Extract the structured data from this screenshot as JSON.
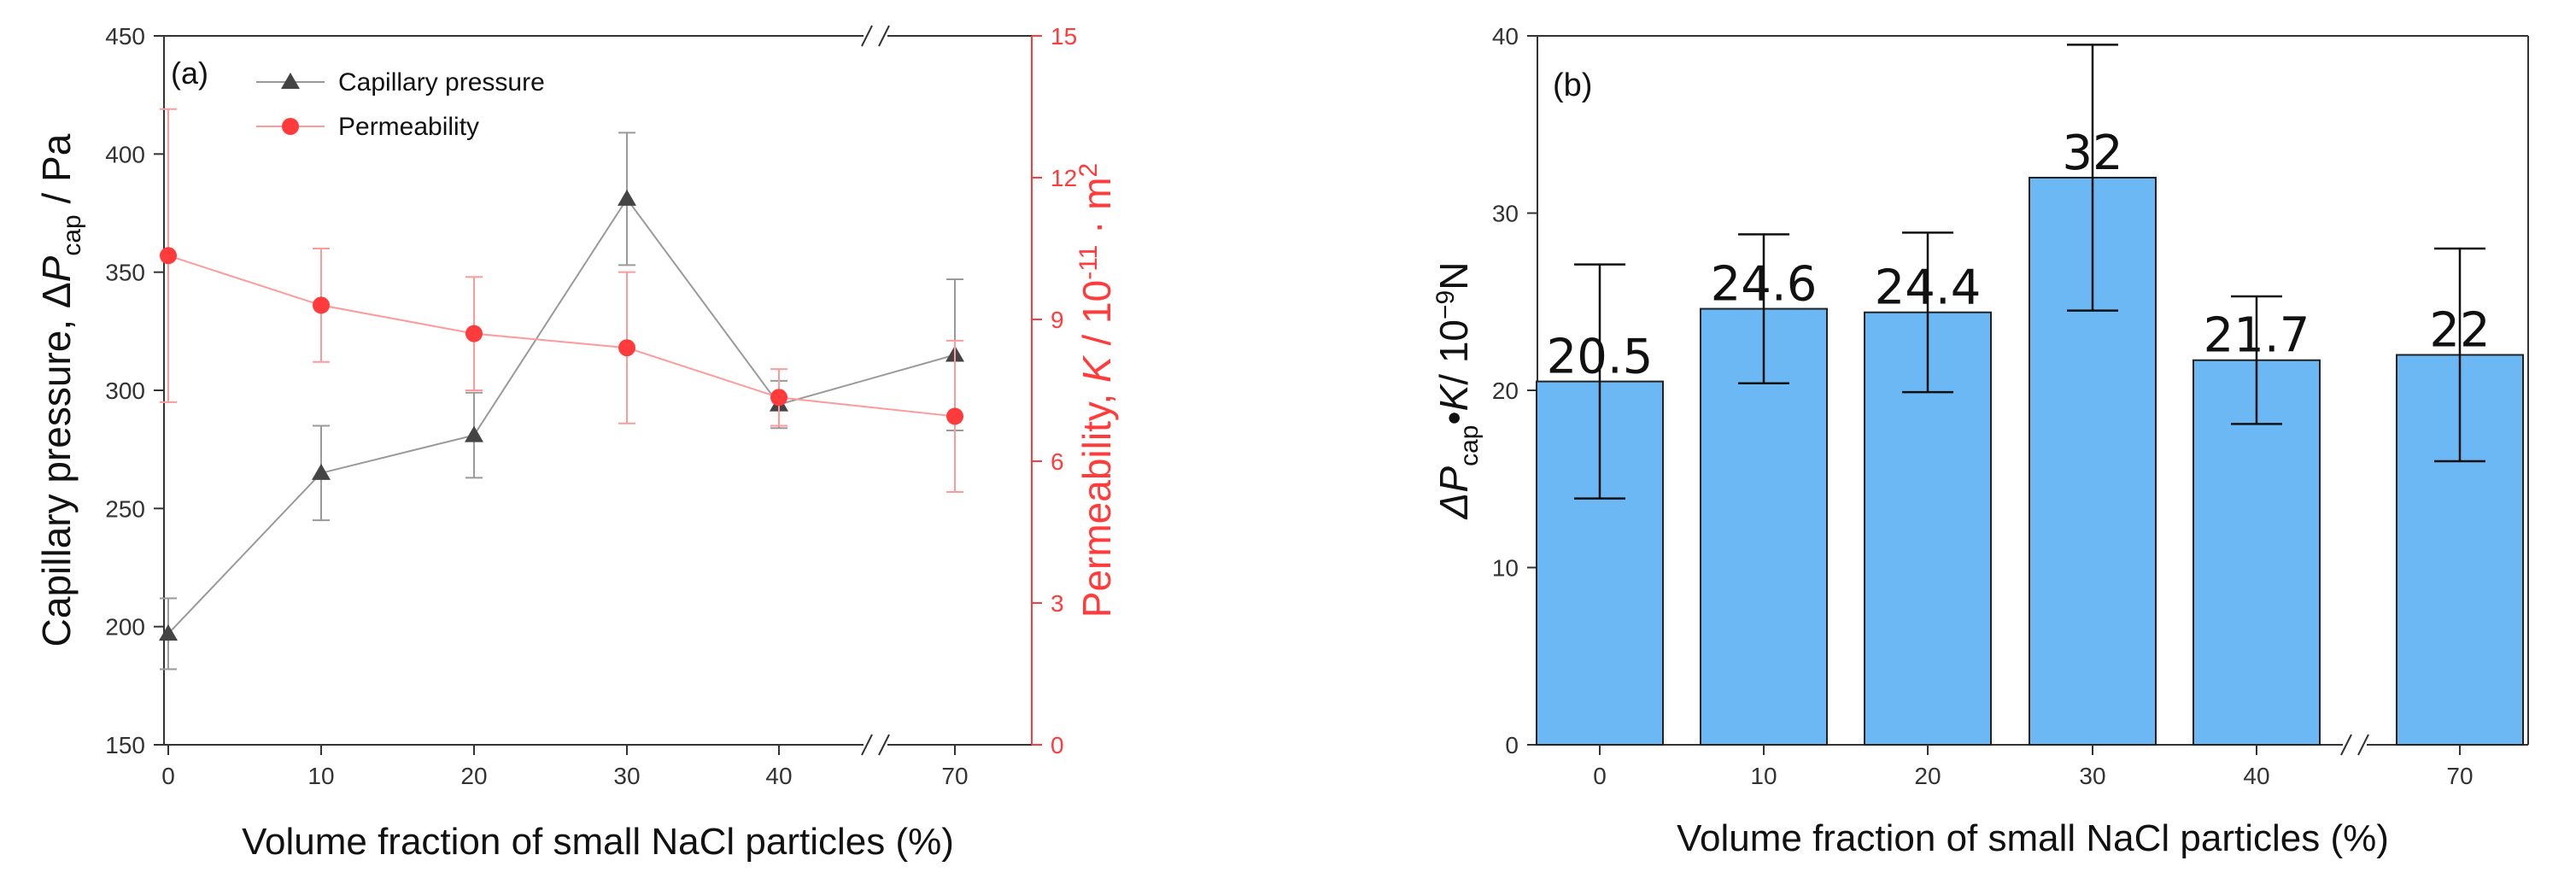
{
  "chart_data": [
    {
      "panel": "(a)",
      "type": "line",
      "title": "",
      "xlabel": "Volume fraction of small NaCl particles (%)",
      "x_ticks": [
        "0",
        "10",
        "20",
        "30",
        "40",
        "70"
      ],
      "x_break_between": [
        "40",
        "70"
      ],
      "y_left": {
        "label_prefix": "Capillary pressure,  Δ",
        "label_var": "P",
        "label_sub": "cap",
        "label_suffix": " / Pa",
        "ylim": [
          150,
          450
        ],
        "ticks": [
          150,
          200,
          250,
          300,
          350,
          400,
          450
        ],
        "color": "#333333"
      },
      "y_right": {
        "label_prefix": "Permeability,  ",
        "label_var": "K",
        "label_mid": " / 10",
        "label_exp": "-11",
        "label_suffix": " · m",
        "label_exp2": "2",
        "ylim": [
          0,
          15
        ],
        "ticks": [
          0,
          3,
          6,
          9,
          12,
          15
        ],
        "color": "#ff3b3b"
      },
      "legend_position": "top-left",
      "series": [
        {
          "name": "Capillary pressure",
          "axis": "left",
          "marker": "triangle",
          "color": "#444444",
          "line_color": "#9a9a9a",
          "values": [
            197,
            265,
            281,
            381,
            294,
            315
          ],
          "errors": [
            15,
            20,
            18,
            28,
            10,
            32
          ]
        },
        {
          "name": "Permeability",
          "axis": "right",
          "marker": "circle",
          "color": "#ff3b3b",
          "line_color": "#ff9a9a",
          "values": [
            10.35,
            9.3,
            8.7,
            8.4,
            7.35,
            6.95
          ],
          "errors": [
            3.1,
            1.2,
            1.2,
            1.6,
            0.6,
            1.6
          ]
        }
      ]
    },
    {
      "panel": "(b)",
      "type": "bar",
      "title": "",
      "xlabel": "Volume fraction of small NaCl particles (%)",
      "ylabel_prefix": "Δ",
      "ylabel_var1": "P",
      "ylabel_sub": "cap",
      "ylabel_mid": "•",
      "ylabel_var2": "K",
      "ylabel_suffix": "/ 10",
      "ylabel_exp": "−9",
      "ylabel_unit": "N",
      "categories": [
        "0",
        "10",
        "20",
        "30",
        "40",
        "70"
      ],
      "x_break_between": [
        "40",
        "70"
      ],
      "values": [
        20.5,
        24.6,
        24.4,
        32,
        21.7,
        22
      ],
      "data_labels": [
        "20.5",
        "24.6",
        "24.4",
        "32",
        "21.7",
        "22"
      ],
      "errors": [
        6.6,
        4.2,
        4.5,
        7.5,
        3.6,
        6.0
      ],
      "ylim": [
        0,
        40
      ],
      "yticks": [
        0,
        10,
        20,
        30,
        40
      ],
      "bar_color": "#6bb8f5"
    }
  ]
}
